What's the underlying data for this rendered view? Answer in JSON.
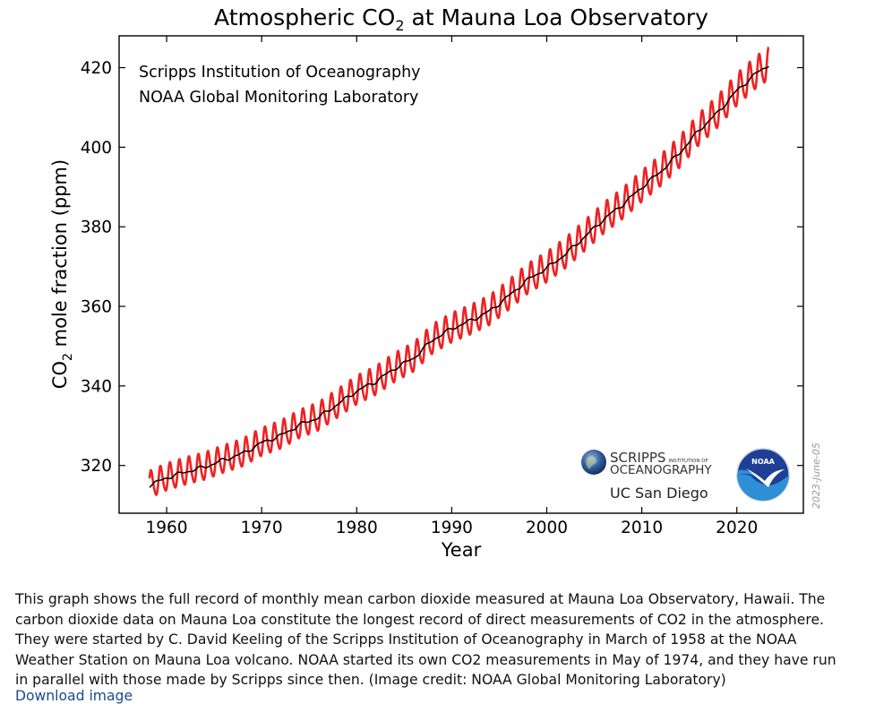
{
  "chart_data": {
    "type": "line",
    "title": "Atmospheric CO",
    "title_sub": "2",
    "title_tail": " at Mauna Loa Observatory",
    "xlabel": "Year",
    "ylabel_pre": "CO",
    "ylabel_sub": "2",
    "ylabel_post": " mole fraction (ppm)",
    "xlim": [
      1955,
      2027
    ],
    "ylim": [
      308,
      428
    ],
    "x_ticks": [
      1960,
      1970,
      1980,
      1990,
      2000,
      2010,
      2020
    ],
    "y_ticks": [
      320,
      340,
      360,
      380,
      400,
      420
    ],
    "annotations": [
      "Scripps Institution of Oceanography",
      "NOAA Global Monitoring Laboratory"
    ],
    "date_stamp": "2023-June-05",
    "series": [
      {
        "line_style": "monthly mean (red, seasonal cycle)",
        "color": "#ee2222",
        "seasonal_amplitude": 3.3
      },
      {
        "line_style": "deseasonalized trend (black)",
        "color": "#000000",
        "x": [
          1958.2,
          1960,
          1962,
          1964,
          1966,
          1968,
          1970,
          1972,
          1974,
          1976,
          1978,
          1980,
          1982,
          1984,
          1986,
          1988,
          1990,
          1992,
          1994,
          1996,
          1998,
          2000,
          2002,
          2004,
          2006,
          2008,
          2010,
          2012,
          2014,
          2016,
          2018,
          2020,
          2022,
          2023.4
        ],
        "y": [
          315.0,
          316.9,
          318.4,
          319.6,
          321.4,
          323.0,
          325.7,
          327.5,
          330.2,
          332.1,
          335.4,
          338.7,
          341.1,
          344.4,
          347.0,
          351.6,
          354.4,
          356.4,
          358.8,
          362.6,
          366.7,
          369.6,
          373.2,
          377.5,
          381.9,
          385.6,
          389.9,
          393.9,
          398.6,
          404.2,
          408.7,
          414.2,
          418.5,
          420.8
        ]
      }
    ]
  },
  "logos": {
    "scripps_big": "SCRIPPS",
    "scripps_small": "INSTITUTION OF",
    "scripps_line2": "OCEANOGRAPHY",
    "ucsd": "UC San Diego",
    "noaa": "NOAA"
  },
  "caption": {
    "text": "This graph shows the full record of monthly mean carbon dioxide measured at Mauna Loa Observatory, Hawaii. The carbon dioxide data on Mauna Loa constitute the longest record of direct measurements of CO2 in the atmosphere. They were started by C. David Keeling of the Scripps Institution of Oceanography in March of 1958 at the NOAA Weather Station on Mauna Loa volcano. NOAA started its own CO2 measurements in May of 1974, and they have run in parallel with those made by Scripps since then.  (Image credit: NOAA Global Monitoring Laboratory)",
    "link_text": "Download image"
  }
}
